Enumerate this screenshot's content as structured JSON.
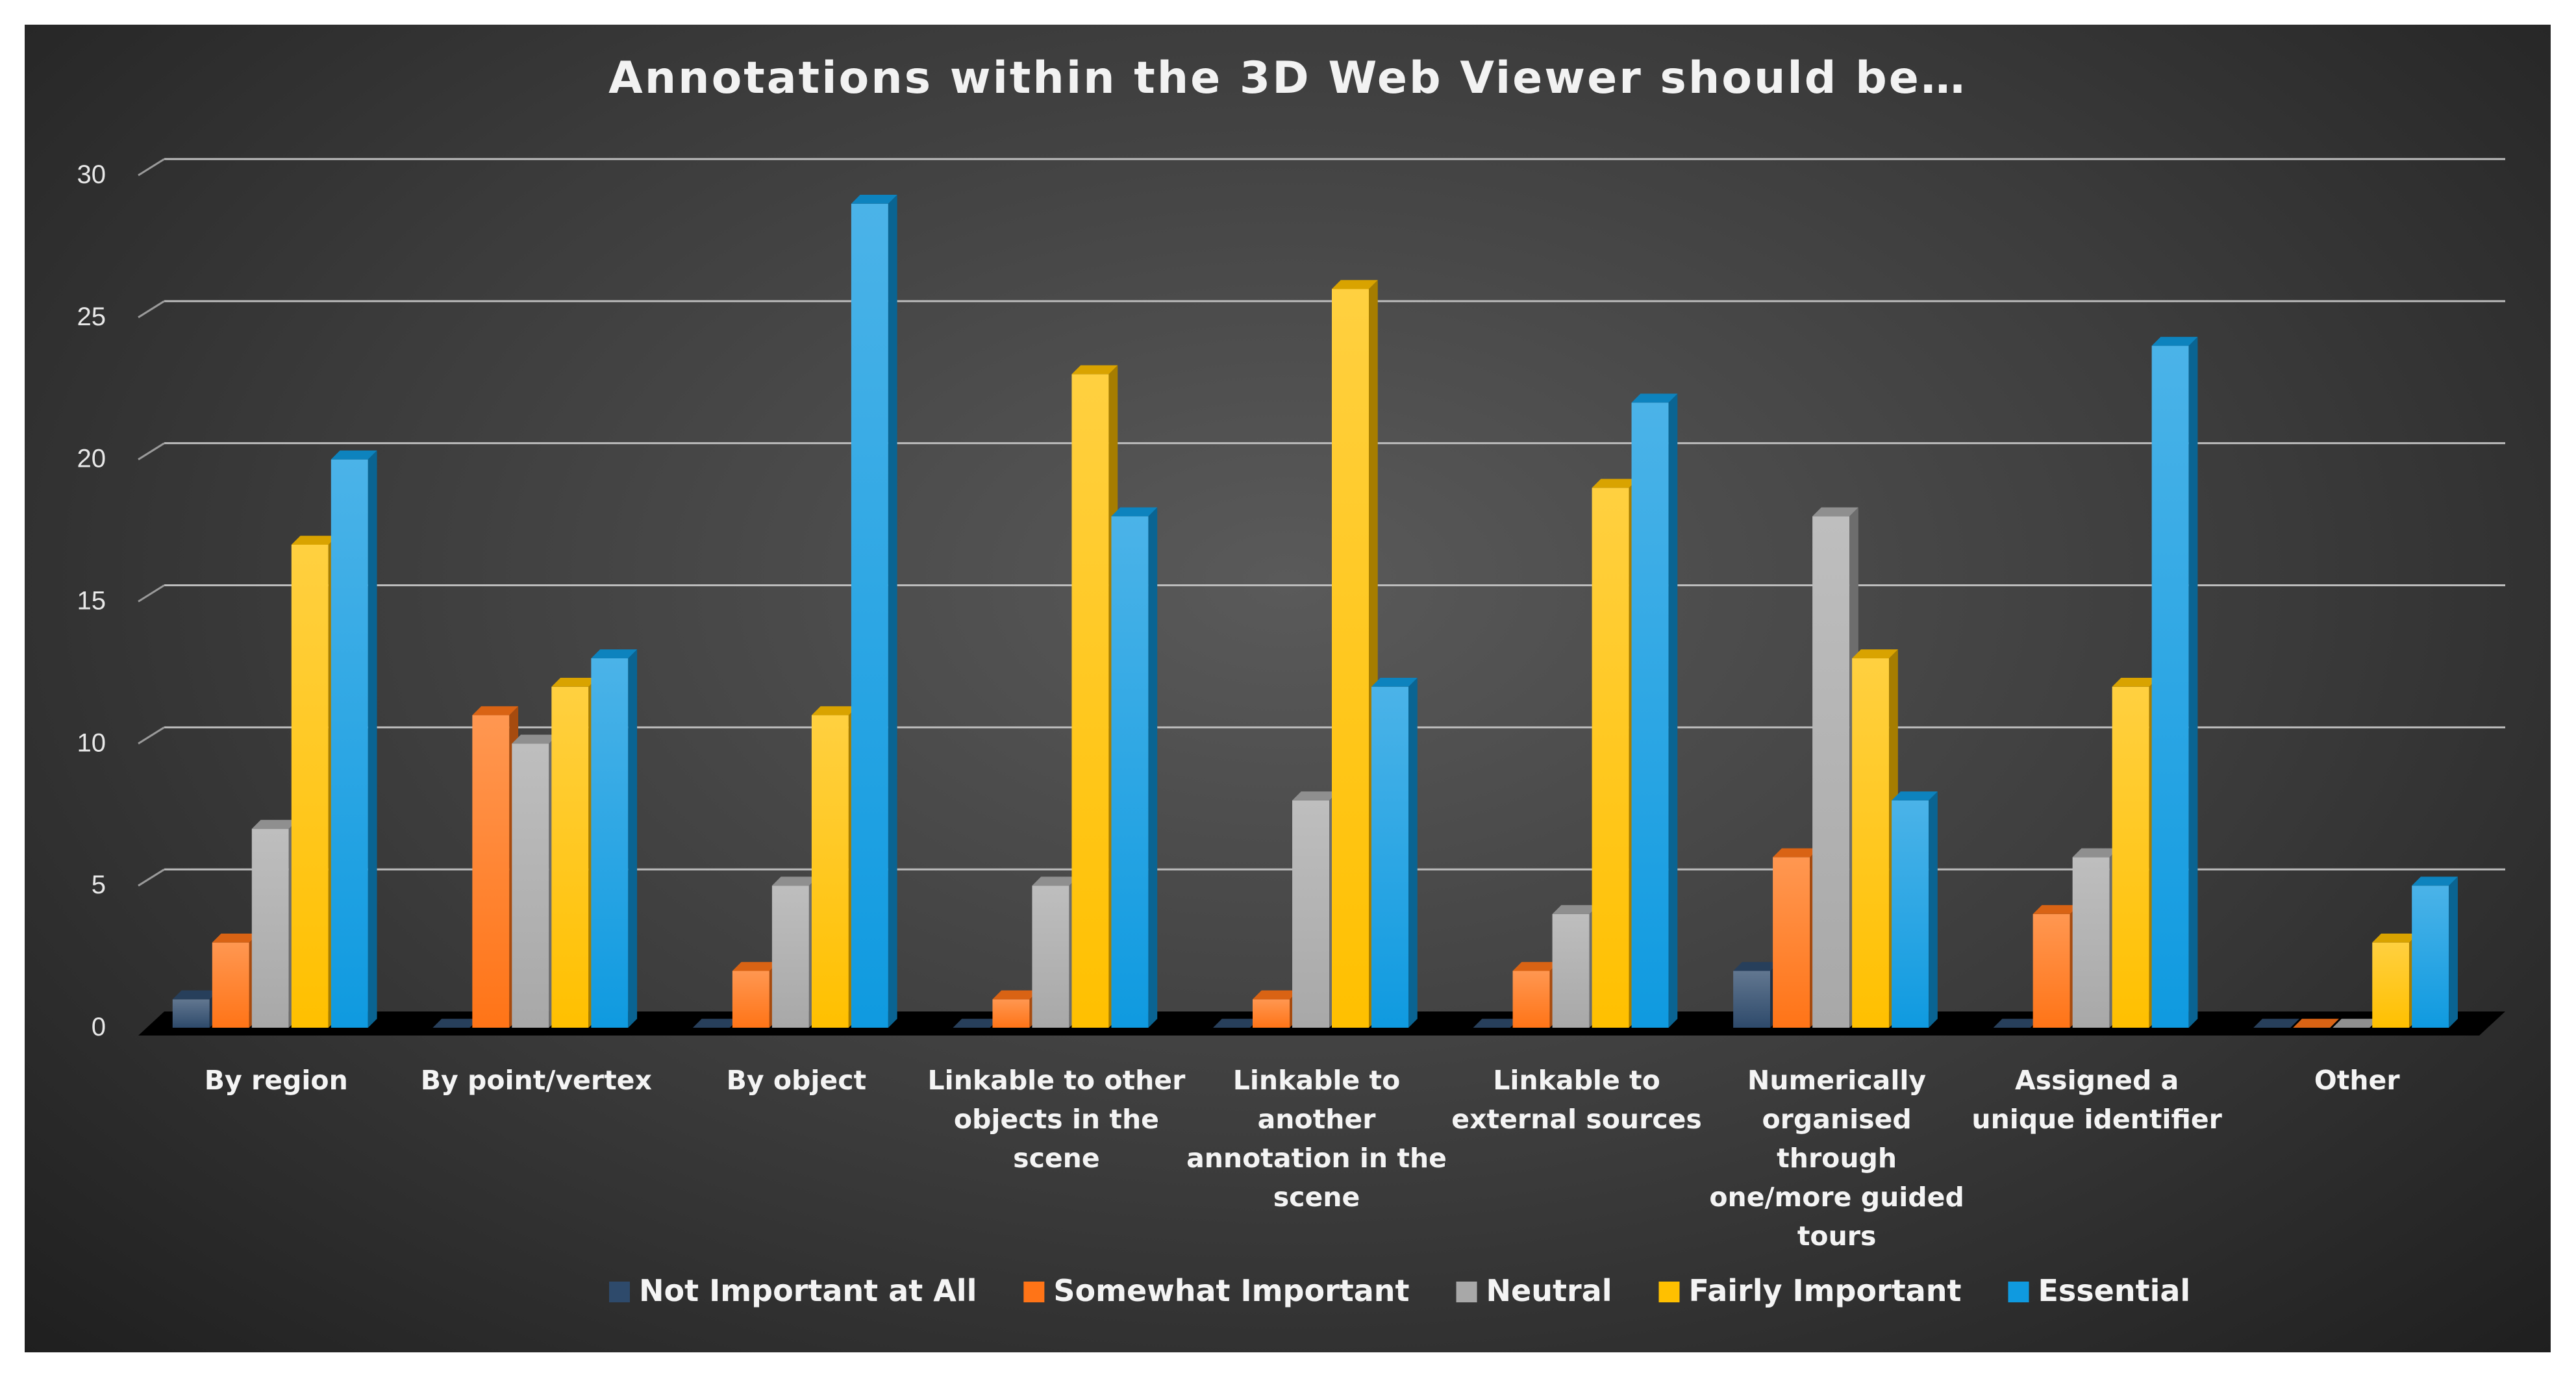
{
  "chart_data": {
    "type": "bar",
    "title": "Annotations within the 3D Web Viewer should be…",
    "categories": [
      "By region",
      "By point/vertex",
      "By object",
      "Linkable to other objects in the scene",
      "Linkable to another annotation in the scene",
      "Linkable to external sources",
      "Numerically organised through one/more guided tours",
      "Assigned a unique identifier",
      "Other"
    ],
    "category_lines": [
      [
        "By region"
      ],
      [
        "By point/vertex"
      ],
      [
        "By object"
      ],
      [
        "Linkable to other",
        "objects in the",
        "scene"
      ],
      [
        "Linkable to",
        "another",
        "annotation in the",
        "scene"
      ],
      [
        "Linkable to",
        "external sources"
      ],
      [
        "Numerically",
        "organised",
        "through",
        "one/more guided",
        "tours"
      ],
      [
        "Assigned a",
        "unique identifier"
      ],
      [
        "Other"
      ]
    ],
    "series": [
      {
        "name": "Not Important at All",
        "color": "#2e4a6b",
        "values": [
          1,
          0,
          0,
          0,
          0,
          0,
          2,
          0,
          0
        ]
      },
      {
        "name": "Somewhat Important",
        "color": "#ff7417",
        "values": [
          3,
          11,
          2,
          1,
          1,
          2,
          6,
          4,
          0
        ]
      },
      {
        "name": "Neutral",
        "color": "#a8a8a8",
        "values": [
          7,
          10,
          5,
          5,
          8,
          4,
          18,
          6,
          0
        ]
      },
      {
        "name": "Fairly Important",
        "color": "#ffc000",
        "values": [
          17,
          12,
          11,
          23,
          26,
          19,
          13,
          12,
          3
        ]
      },
      {
        "name": "Essential",
        "color": "#0f9ae0",
        "values": [
          20,
          13,
          29,
          18,
          12,
          22,
          8,
          24,
          5
        ]
      }
    ],
    "y_ticks": [
      "0",
      "5",
      "10",
      "15",
      "20",
      "25",
      "30"
    ],
    "ylim": [
      0,
      30
    ],
    "grid": true,
    "legend_position": "bottom",
    "xlabel": "",
    "ylabel": ""
  }
}
